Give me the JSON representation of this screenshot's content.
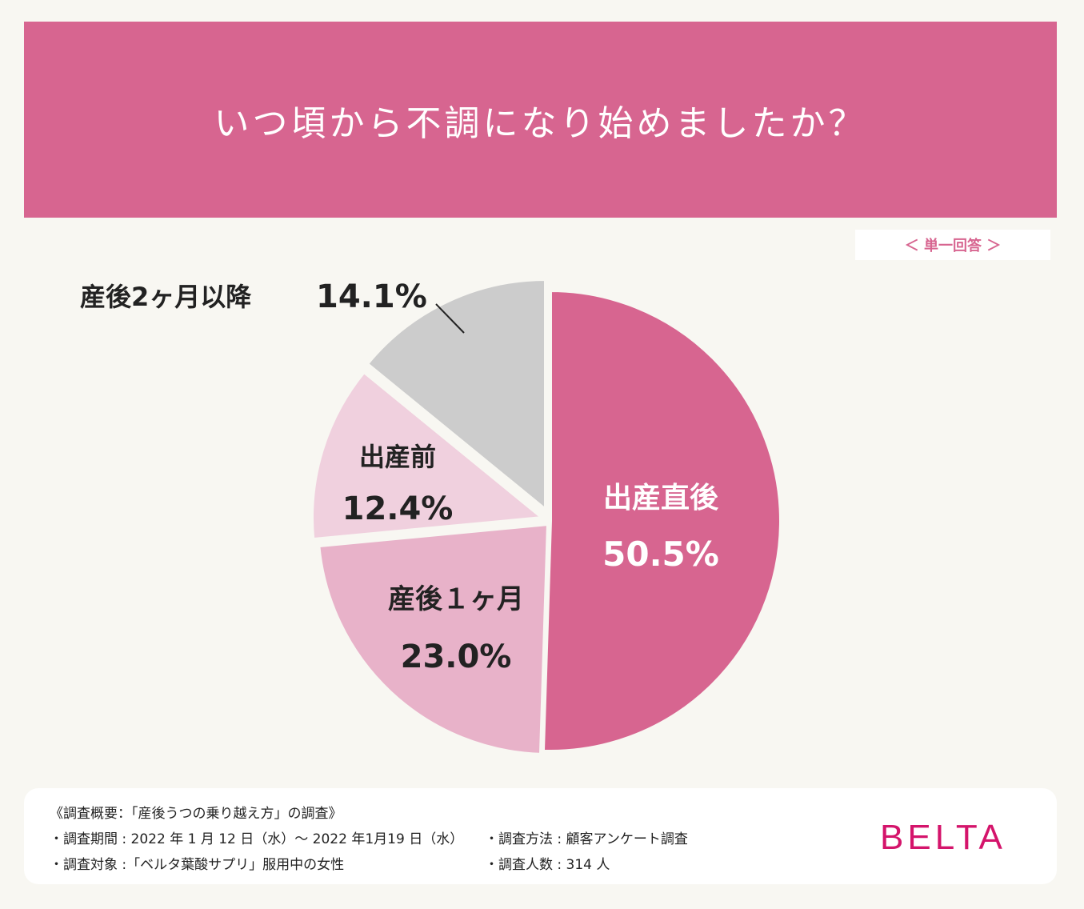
{
  "title": "いつ頃から不調になり始めましたか？",
  "answer_type": "＜ 単一回答 ＞",
  "chart_data": {
    "type": "pie",
    "title": "いつ頃から不調になり始めましたか？",
    "slices": [
      {
        "label": "出産直後",
        "value": 50.5,
        "display": "50.5%",
        "color": "#d76590",
        "text_color": "#ffffff"
      },
      {
        "label": "産後１ヶ月",
        "value": 23.0,
        "display": "23.0%",
        "color": "#e8b2c9",
        "text_color": "#222222"
      },
      {
        "label": "出産前",
        "value": 12.4,
        "display": "12.4%",
        "color": "#f0d0de",
        "text_color": "#222222"
      },
      {
        "label": "産後2ヶ月以降",
        "value": 14.1,
        "display": "14.1%",
        "color": "#cccccc",
        "text_color": "#222222"
      }
    ]
  },
  "footer": {
    "heading": "《調査概要：「産後うつの乗り越え方」の調査》",
    "period": "・調査期間 : 2022 年 1 月 12 日（水）～ 2022 年1月19 日（水）",
    "target": "・調査対象 :「ベルタ葉酸サプリ」服用中の女性",
    "method": "・調査方法 : 顧客アンケート調査",
    "count": "・調査人数 : 314 人"
  },
  "brand": "BELTA",
  "colors": {
    "accent": "#d76590",
    "brand": "#d4146b",
    "background": "#f8f7f2"
  }
}
